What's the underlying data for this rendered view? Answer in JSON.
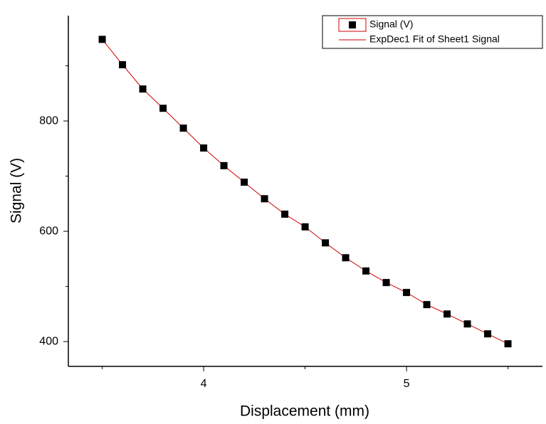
{
  "chart_data": {
    "type": "scatter",
    "xlabel": "Displacement (mm)",
    "ylabel": "Signal (V)",
    "x": [
      3.5,
      3.6,
      3.7,
      3.8,
      3.9,
      4.0,
      4.1,
      4.2,
      4.3,
      4.4,
      4.5,
      4.6,
      4.7,
      4.8,
      4.9,
      5.0,
      5.1,
      5.2,
      5.3,
      5.4,
      5.5
    ],
    "series": [
      {
        "name": "Signal (V)",
        "color": "#000000",
        "marker": "square",
        "values": [
          948,
          902,
          858,
          823,
          787,
          751,
          719,
          689,
          659,
          631,
          608,
          579,
          552,
          528,
          507,
          489,
          467,
          450,
          432,
          414,
          396
        ]
      },
      {
        "name": "ExpDec1 Fit of Sheet1 Signal",
        "color": "#cc0000",
        "marker": "line",
        "values": [
          948,
          902,
          858,
          823,
          787,
          751,
          719,
          689,
          659,
          631,
          608,
          579,
          552,
          528,
          507,
          489,
          467,
          450,
          432,
          414,
          396
        ]
      }
    ],
    "xlim": [
      3.333,
      5.67
    ],
    "xticks": [
      4,
      5
    ],
    "xminor": [
      3.5,
      4.5,
      5.5
    ],
    "ylim": [
      355,
      991
    ],
    "yticks": [
      400,
      600,
      800
    ],
    "yminor": [
      500,
      700,
      900
    ],
    "legend": "top-right"
  }
}
